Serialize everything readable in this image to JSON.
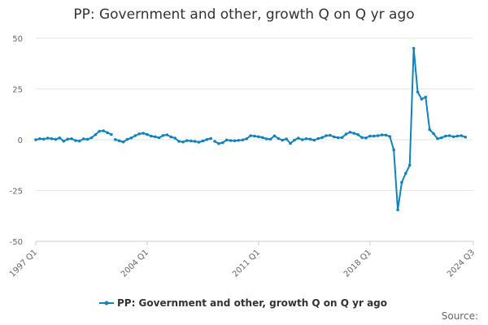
{
  "chart_data": {
    "type": "line",
    "title": "PP: Government and other, growth Q on Q yr ago",
    "xlabel": "",
    "ylabel": "",
    "ylim": [
      -50,
      50
    ],
    "y_ticks": [
      50,
      25,
      0,
      -25,
      -50
    ],
    "y_tick_labels": [
      "50",
      "25",
      "0",
      "-25",
      "-50"
    ],
    "x_tick_labels": [
      "1997 Q1",
      "2004 Q1",
      "2011 Q1",
      "2018 Q1",
      "2024 Q3"
    ],
    "grid": true,
    "legend_position": "bottom",
    "color": "#0f83bd",
    "series": [
      {
        "name": "PP: Government and other, growth Q on Q yr ago",
        "segments": [
          {
            "start": "1997 Q1",
            "values": [
              0.0,
              0.5,
              0.3,
              0.8,
              0.5,
              0.2,
              0.9,
              -0.7,
              0.3,
              0.5,
              -0.4,
              -0.6,
              0.4,
              0.2,
              1.0,
              2.5,
              4.2,
              4.4,
              3.5,
              2.6
            ]
          },
          {
            "start": "2002 Q1",
            "values": [
              0.1,
              -0.5,
              -1.1,
              0.2,
              0.9,
              2.0,
              2.9,
              3.2,
              2.6,
              1.8,
              1.5,
              1.0,
              2.1,
              2.4,
              1.4,
              0.8,
              -0.8,
              -1.1,
              -0.4,
              -0.6,
              -0.8,
              -1.2,
              -0.6,
              0.1,
              0.6
            ]
          },
          {
            "start": "2008 Q2",
            "values": [
              -0.8,
              -1.9,
              -1.4,
              -0.1,
              -0.4,
              -0.5,
              -0.3,
              -0.1,
              0.5,
              2.0,
              1.8,
              1.5,
              1.1,
              0.4,
              0.3,
              1.9,
              0.6,
              -0.2,
              0.4,
              -1.8,
              -0.2,
              0.8,
              0.0,
              0.5,
              0.3,
              -0.2,
              0.6,
              1.1,
              2.0,
              2.2,
              1.4,
              1.0,
              1.1,
              2.8,
              3.7,
              3.2,
              2.5,
              1.1,
              0.9,
              1.8,
              1.8,
              2.0,
              2.4,
              2.3,
              1.6,
              -5.0,
              -34.5,
              -21.0,
              -16.5,
              -12.5,
              45.0,
              23.5,
              20.0,
              21.0,
              5.0,
              3.0,
              0.5,
              1.0,
              1.8,
              2.0,
              1.5,
              1.8,
              2.0,
              1.3
            ]
          }
        ]
      }
    ]
  },
  "source_label": "Source:"
}
